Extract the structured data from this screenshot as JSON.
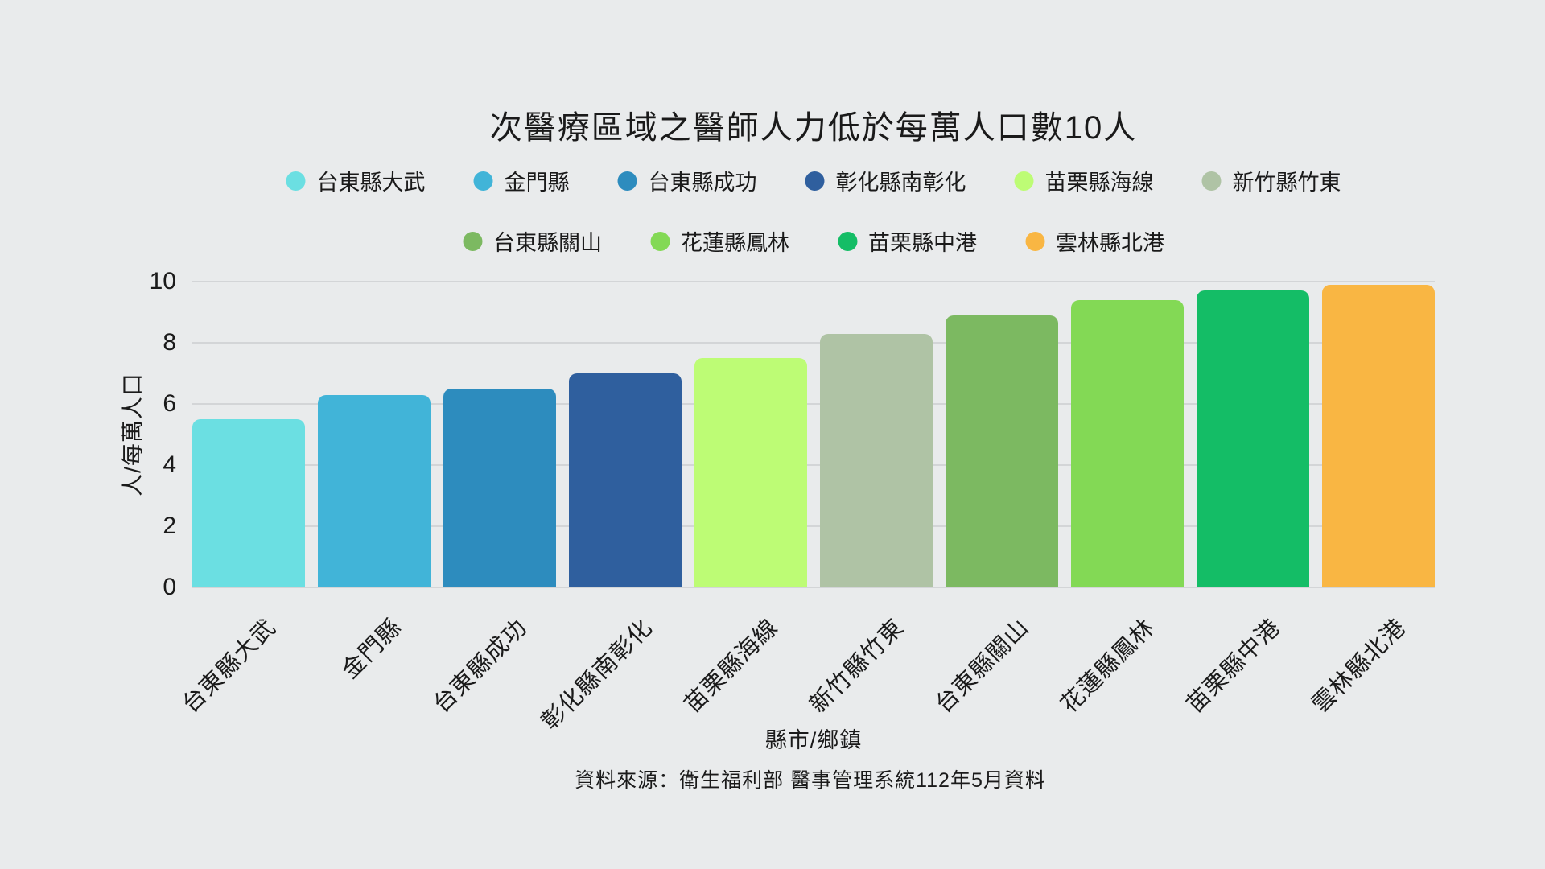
{
  "colors": {
    "background": "#e9ebec",
    "gridline": "#d3d5d7",
    "text": "#1a1a1a"
  },
  "source_note": "資料來源：衛生福利部 醫事管理系統112年5月資料",
  "chart_data": {
    "type": "bar",
    "title": "次醫療區域之醫師人力低於每萬人口數10人",
    "xlabel": "縣市/鄉鎮",
    "ylabel": "人/每萬人口",
    "ylim": [
      0,
      10
    ],
    "yticks": [
      0,
      2,
      4,
      6,
      8,
      10
    ],
    "grid": true,
    "legend_position": "top",
    "legend_row_split": 6,
    "categories": [
      "台東縣大武",
      "金門縣",
      "台東縣成功",
      "彰化縣南彰化",
      "苗栗縣海線",
      "新竹縣竹東",
      "台東縣關山",
      "花蓮縣鳳林",
      "苗栗縣中港",
      "雲林縣北港"
    ],
    "values": [
      5.5,
      6.3,
      6.5,
      7.0,
      7.5,
      8.3,
      8.9,
      9.4,
      9.7,
      9.9
    ],
    "bar_colors": [
      "#6bdfe2",
      "#41b4d8",
      "#2d8cbe",
      "#2f5f9e",
      "#bdfc75",
      "#afc3a5",
      "#7cb961",
      "#83d955",
      "#14bd66",
      "#f9b643"
    ]
  }
}
